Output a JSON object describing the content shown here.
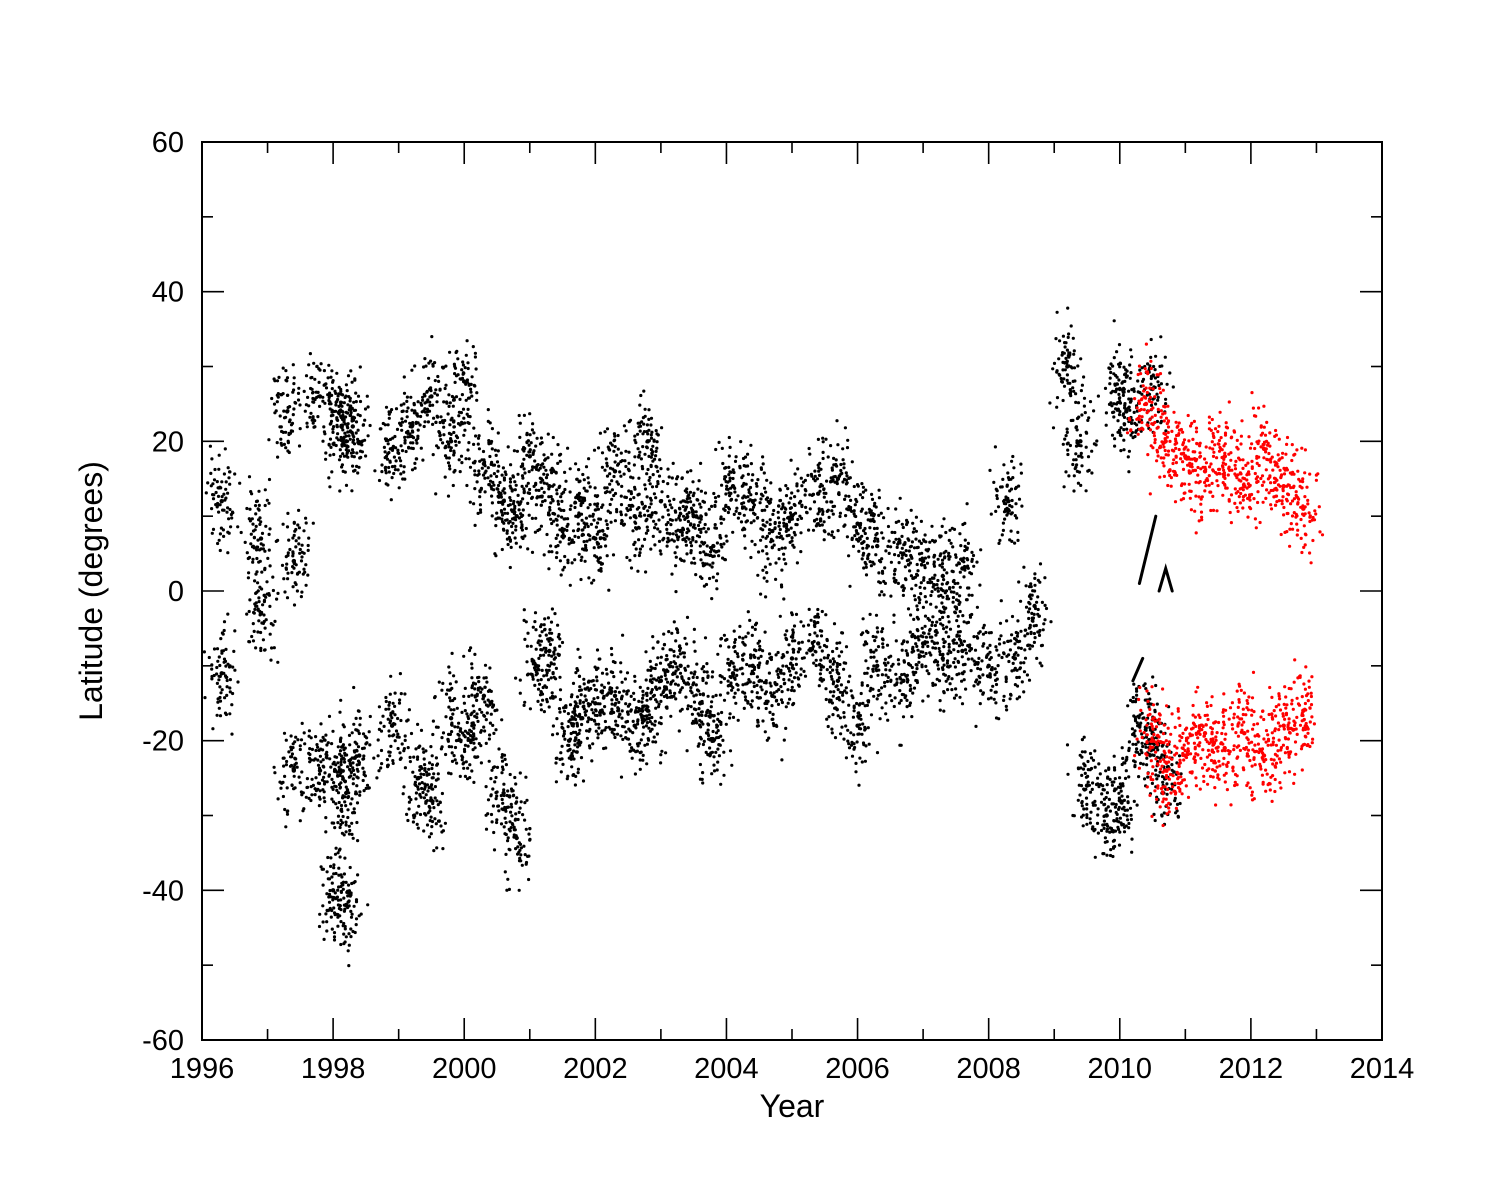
{
  "chart_data": {
    "type": "scatter",
    "title": "",
    "xlabel": "Year",
    "ylabel": "Latitude (degrees)",
    "xlim": [
      1996,
      2014
    ],
    "ylim": [
      -60,
      60
    ],
    "x_ticks": [
      1996,
      1998,
      2000,
      2002,
      2004,
      2006,
      2008,
      2010,
      2012,
      2014
    ],
    "x_tick_labels": [
      "1996",
      "1998",
      "2000",
      "2002",
      "2004",
      "2006",
      "2008",
      "2010",
      "2012",
      "2014"
    ],
    "y_ticks": [
      -60,
      -40,
      -20,
      0,
      20,
      40,
      60
    ],
    "y_tick_labels": [
      "-60",
      "-40",
      "-20",
      "0",
      "20",
      "40",
      "60"
    ],
    "grid": false,
    "legend": "none",
    "series": [
      {
        "color": "#000000",
        "description_points": "approximate cluster centroids (year, latitude) read from dense point clouds",
        "points": [
          [
            1996.3,
            12
          ],
          [
            1996.3,
            -11
          ],
          [
            1996.9,
            7
          ],
          [
            1996.9,
            -3
          ],
          [
            1997.4,
            4
          ],
          [
            1997.3,
            24
          ],
          [
            1997.4,
            -24
          ],
          [
            1997.8,
            26
          ],
          [
            1997.8,
            -24
          ],
          [
            1998.1,
            24
          ],
          [
            1998.1,
            -24
          ],
          [
            1998.2,
            20
          ],
          [
            1998.2,
            -27
          ],
          [
            1998.3,
            22
          ],
          [
            1998.4,
            -22
          ],
          [
            1998.0,
            -40
          ],
          [
            1998.2,
            -42
          ],
          [
            1998.9,
            19
          ],
          [
            1998.9,
            -18
          ],
          [
            1999.2,
            22
          ],
          [
            1999.3,
            -25
          ],
          [
            1999.5,
            26
          ],
          [
            1999.5,
            -28
          ],
          [
            1999.8,
            20
          ],
          [
            1999.8,
            -17
          ],
          [
            2000.0,
            28
          ],
          [
            2000.1,
            -20
          ],
          [
            2000.3,
            17
          ],
          [
            2000.3,
            -14
          ],
          [
            2000.6,
            12
          ],
          [
            2000.6,
            -27
          ],
          [
            2000.8,
            10
          ],
          [
            2000.8,
            -33
          ],
          [
            2001.0,
            18
          ],
          [
            2001.1,
            -10
          ],
          [
            2001.3,
            14
          ],
          [
            2001.3,
            -8
          ],
          [
            2001.5,
            8
          ],
          [
            2001.6,
            -20
          ],
          [
            2001.8,
            12
          ],
          [
            2001.8,
            -17
          ],
          [
            2002.0,
            7
          ],
          [
            2002.0,
            -15
          ],
          [
            2002.3,
            16
          ],
          [
            2002.3,
            -14
          ],
          [
            2002.6,
            10
          ],
          [
            2002.6,
            -18
          ],
          [
            2002.8,
            20
          ],
          [
            2002.8,
            -16
          ],
          [
            2003.0,
            12
          ],
          [
            2003.0,
            -12
          ],
          [
            2003.3,
            8
          ],
          [
            2003.3,
            -10
          ],
          [
            2003.5,
            10
          ],
          [
            2003.6,
            -15
          ],
          [
            2003.8,
            6
          ],
          [
            2003.8,
            -20
          ],
          [
            2004.1,
            14
          ],
          [
            2004.1,
            -11
          ],
          [
            2004.4,
            12
          ],
          [
            2004.4,
            -10
          ],
          [
            2004.7,
            8
          ],
          [
            2004.7,
            -14
          ],
          [
            2005.0,
            10
          ],
          [
            2005.0,
            -9
          ],
          [
            2005.4,
            13
          ],
          [
            2005.4,
            -7
          ],
          [
            2005.7,
            15
          ],
          [
            2005.7,
            -12
          ],
          [
            2006.0,
            9
          ],
          [
            2006.0,
            -18
          ],
          [
            2006.3,
            6
          ],
          [
            2006.3,
            -10
          ],
          [
            2006.7,
            5
          ],
          [
            2006.7,
            -12
          ],
          [
            2007.0,
            4
          ],
          [
            2007.0,
            -7
          ],
          [
            2007.3,
            2
          ],
          [
            2007.3,
            -9
          ],
          [
            2007.6,
            3
          ],
          [
            2007.6,
            -8
          ],
          [
            2008.0,
            -10
          ],
          [
            2008.3,
            12
          ],
          [
            2008.4,
            -9
          ],
          [
            2008.7,
            -2
          ],
          [
            2009.2,
            30
          ],
          [
            2009.4,
            20
          ],
          [
            2009.5,
            -26
          ],
          [
            2009.8,
            -30
          ],
          [
            2010.0,
            27
          ],
          [
            2010.0,
            -28
          ],
          [
            2010.1,
            24
          ],
          [
            2010.3,
            -18
          ],
          [
            2010.5,
            27
          ],
          [
            2010.5,
            -19
          ],
          [
            2010.7,
            -25
          ]
        ]
      },
      {
        "color": "#ff0000",
        "description_points": "approximate cluster centroids (year, latitude)",
        "points": [
          [
            2010.4,
            25
          ],
          [
            2010.5,
            -20
          ],
          [
            2010.7,
            20
          ],
          [
            2010.7,
            -24
          ],
          [
            2011.0,
            18
          ],
          [
            2011.0,
            -22
          ],
          [
            2011.3,
            16
          ],
          [
            2011.3,
            -19
          ],
          [
            2011.6,
            18
          ],
          [
            2011.6,
            -21
          ],
          [
            2011.9,
            14
          ],
          [
            2011.9,
            -19
          ],
          [
            2012.2,
            19
          ],
          [
            2012.2,
            -22
          ],
          [
            2012.5,
            14
          ],
          [
            2012.5,
            -18
          ],
          [
            2012.8,
            11
          ],
          [
            2012.8,
            -16
          ]
        ]
      }
    ],
    "annotations": [
      {
        "type": "line",
        "color": "#000000",
        "x": [
          2010.3,
          2010.55
        ],
        "y": [
          1,
          10
        ]
      },
      {
        "type": "arc",
        "color": "#000000",
        "x": [
          2010.6,
          2010.7,
          2010.8
        ],
        "y": [
          0,
          3,
          0
        ]
      },
      {
        "type": "line",
        "color": "#000000",
        "x": [
          2010.2,
          2010.35
        ],
        "y": [
          -12,
          -9
        ]
      }
    ]
  }
}
